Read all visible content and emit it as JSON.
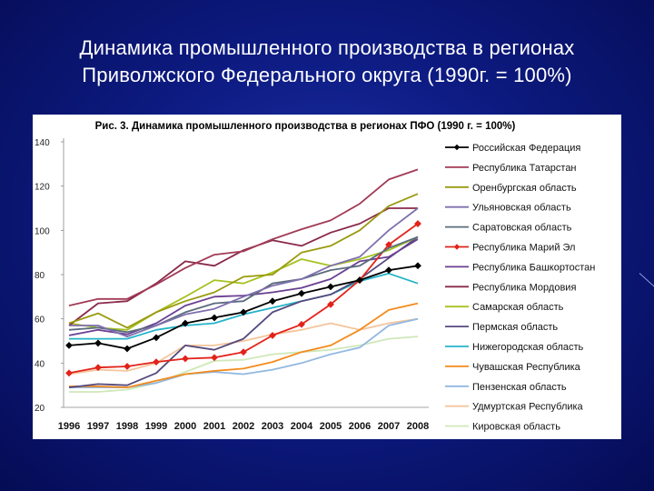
{
  "slide": {
    "title_line1": "Динамика промышленного производства в регионах",
    "title_line2": "Приволжского Федерального округа (1990г. = 100%)"
  },
  "colors": {
    "background": "#0d1b82",
    "title_text": "#ffffff",
    "chart_background": "#ffffff"
  },
  "chart_data": {
    "type": "line",
    "title": "Рис. 3. Динамика промышленного производства в регионах ПФО (1990 г. = 100%)",
    "xlabel": "",
    "ylabel": "",
    "ylim": [
      20,
      140
    ],
    "y_ticks": [
      20,
      40,
      60,
      80,
      100,
      120,
      140
    ],
    "grid": false,
    "legend_position": "right",
    "categories": [
      "1996",
      "1997",
      "1998",
      "1999",
      "2000",
      "2001",
      "2002",
      "2003",
      "2004",
      "2005",
      "2006",
      "2007",
      "2008"
    ],
    "series": [
      {
        "name": "Российская Федерация",
        "color": "#000000",
        "marker": "diamond",
        "values": [
          48,
          49,
          46.5,
          51.5,
          58,
          60.5,
          63,
          68,
          71.5,
          74.5,
          77.5,
          82,
          84
        ]
      },
      {
        "name": "Республика Татарстан",
        "color": "#a23a55",
        "marker": "none",
        "values": [
          66,
          69,
          69,
          75.5,
          83,
          89,
          90.5,
          96,
          100.5,
          104.5,
          112,
          123,
          127.5
        ]
      },
      {
        "name": "Оренбургская область",
        "color": "#9a9a10",
        "marker": "none",
        "values": [
          58,
          62.5,
          56,
          63,
          68,
          72,
          79,
          80,
          90,
          93,
          100,
          111,
          116.5
        ]
      },
      {
        "name": "Ульяновская область",
        "color": "#7f6fae",
        "marker": "none",
        "values": [
          57,
          57,
          52,
          57,
          62,
          64.5,
          70,
          75,
          78,
          84,
          88,
          100,
          110
        ]
      },
      {
        "name": "Саратовская область",
        "color": "#5a6c7c",
        "marker": "none",
        "values": [
          55,
          56,
          54,
          57,
          63,
          67,
          68,
          76,
          78,
          82,
          84,
          92,
          97
        ]
      },
      {
        "name": "Республика Марий Эл",
        "color": "#e2231a",
        "marker": "diamond",
        "values": [
          35.5,
          38,
          38.5,
          40.5,
          42,
          42.5,
          45,
          52.5,
          57.5,
          66.5,
          77.5,
          93.5,
          103
        ]
      },
      {
        "name": "Республика Башкортостан",
        "color": "#6a3f92",
        "marker": "none",
        "values": [
          52.5,
          55,
          53,
          58,
          66,
          70,
          70.5,
          72,
          74,
          78,
          86,
          88,
          96
        ]
      },
      {
        "name": "Республика Мордовия",
        "color": "#8a2a4a",
        "marker": "none",
        "values": [
          57,
          67,
          68,
          76,
          86,
          84,
          91,
          95.5,
          93,
          99,
          103,
          110,
          110
        ]
      },
      {
        "name": "Самарская область",
        "color": "#a6c221",
        "marker": "none",
        "values": [
          58,
          56,
          55,
          63,
          70,
          77.5,
          76,
          81,
          87,
          84,
          87,
          91,
          97
        ]
      },
      {
        "name": "Пермская область",
        "color": "#564a7e",
        "marker": "none",
        "values": [
          29,
          30.5,
          30,
          35.5,
          48,
          46,
          51,
          63,
          68,
          71,
          78,
          87.5,
          97
        ]
      },
      {
        "name": "Нижегородская область",
        "color": "#24b4c8",
        "marker": "none",
        "values": [
          51,
          51,
          51,
          55,
          57,
          58,
          62,
          65,
          68,
          71,
          77,
          80.5,
          76
        ]
      },
      {
        "name": "Чувашская Республика",
        "color": "#f38b1c",
        "marker": "none",
        "values": [
          29.5,
          29.5,
          29,
          32,
          35,
          36.5,
          37.5,
          40.5,
          45,
          48,
          55,
          64,
          67
        ]
      },
      {
        "name": "Пензенская область",
        "color": "#92b8e0",
        "marker": "none",
        "values": [
          29,
          29,
          29,
          31,
          35,
          36,
          35,
          37,
          40,
          44,
          47,
          57,
          60
        ]
      },
      {
        "name": "Удмуртская Республика",
        "color": "#f3c59c",
        "marker": "none",
        "values": [
          35,
          37,
          36.5,
          40,
          48,
          48,
          50,
          53,
          55,
          58,
          55,
          58,
          60
        ]
      },
      {
        "name": "Кировская область",
        "color": "#cfe8b8",
        "marker": "none",
        "values": [
          27,
          27,
          28,
          31,
          36,
          41,
          41.5,
          44,
          45,
          46,
          48,
          51,
          52
        ]
      }
    ]
  }
}
